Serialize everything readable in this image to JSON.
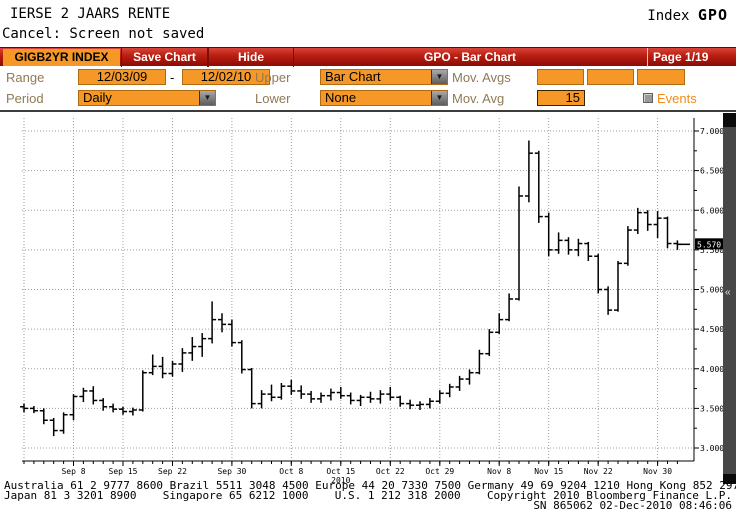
{
  "header": {
    "title": "IERSE 2 JAARS RENTE",
    "subtitle": "Cancel: Screen not saved",
    "right_label": "Index",
    "right_command": "GPO"
  },
  "title_bar": {
    "security": "GIGB2YR INDEX",
    "save_button": "Save Chart",
    "hide_button": "Hide",
    "title": "GPO - Bar Chart",
    "page": "Page 1/19"
  },
  "toolbar": {
    "range_label": "Range",
    "range_start": "12/03/09",
    "range_separator": "-",
    "range_end": "12/02/10",
    "upper_label": "Upper",
    "upper_value": "Bar Chart",
    "mov_avgs_label": "Mov. Avgs",
    "mov_avg_fields": [
      "",
      "",
      ""
    ],
    "period_label": "Period",
    "period_value": "Daily",
    "lower_label": "Lower",
    "lower_value": "None",
    "mov_avg_label": "Mov. Avg",
    "mov_avg_value": "15",
    "events_label": "Events"
  },
  "chart_data": {
    "type": "bar",
    "subtype": "ohlc_daily_bars",
    "title": "GPO - Bar Chart",
    "security": "GIGB2YR INDEX",
    "period": "Daily",
    "ylim": [
      3.0,
      7.0
    ],
    "y_tick_step": 0.5,
    "y_minor_tick_step": 0.25,
    "y_tick_labels": [
      "7.000",
      "6.500",
      "6.000",
      "5.500",
      "5.000",
      "4.500",
      "4.000",
      "3.500",
      "3.000"
    ],
    "grid": "dotted",
    "x_tick_labels": [
      {
        "text": "Sep 8",
        "i": 5
      },
      {
        "text": "Sep 15",
        "i": 10
      },
      {
        "text": "Sep 22",
        "i": 15
      },
      {
        "text": "Sep 30",
        "i": 21
      },
      {
        "text": "Oct 8",
        "i": 27
      },
      {
        "text": "Oct 15",
        "i": 32
      },
      {
        "text": "Oct 22",
        "i": 37
      },
      {
        "text": "Oct 29",
        "i": 42
      },
      {
        "text": "Nov 8",
        "i": 48
      },
      {
        "text": "Nov 15",
        "i": 53
      },
      {
        "text": "Nov 22",
        "i": 58
      },
      {
        "text": "Nov 30",
        "i": 64
      }
    ],
    "year_label": {
      "text": "2010",
      "i": 32
    },
    "grid_line_indices": [
      0,
      5,
      10,
      15,
      21,
      27,
      32,
      37,
      42,
      48,
      53,
      58,
      64
    ],
    "last_price": 5.57,
    "last_price_label": "5.570",
    "bars_format": [
      "date",
      "open",
      "high",
      "low",
      "close"
    ],
    "bars": [
      [
        "09/01",
        3.52,
        3.56,
        3.45,
        3.5
      ],
      [
        "09/02",
        3.5,
        3.53,
        3.44,
        3.47
      ],
      [
        "09/03",
        3.47,
        3.5,
        3.3,
        3.35
      ],
      [
        "09/06",
        3.35,
        3.38,
        3.15,
        3.22
      ],
      [
        "09/07",
        3.22,
        3.45,
        3.18,
        3.42
      ],
      [
        "09/08",
        3.42,
        3.68,
        3.35,
        3.65
      ],
      [
        "09/09",
        3.65,
        3.76,
        3.58,
        3.72
      ],
      [
        "09/10",
        3.72,
        3.78,
        3.55,
        3.6
      ],
      [
        "09/13",
        3.6,
        3.63,
        3.47,
        3.52
      ],
      [
        "09/14",
        3.52,
        3.56,
        3.45,
        3.49
      ],
      [
        "09/15",
        3.49,
        3.52,
        3.42,
        3.46
      ],
      [
        "09/16",
        3.46,
        3.51,
        3.41,
        3.48
      ],
      [
        "09/17",
        3.48,
        3.98,
        3.46,
        3.95
      ],
      [
        "09/20",
        3.95,
        4.18,
        3.92,
        4.03
      ],
      [
        "09/21",
        4.03,
        4.15,
        3.88,
        3.94
      ],
      [
        "09/22",
        3.94,
        4.1,
        3.9,
        4.06
      ],
      [
        "09/23",
        4.06,
        4.26,
        3.96,
        4.2
      ],
      [
        "09/24",
        4.2,
        4.4,
        4.1,
        4.28
      ],
      [
        "09/27",
        4.28,
        4.45,
        4.15,
        4.38
      ],
      [
        "09/28",
        4.38,
        4.85,
        4.32,
        4.62
      ],
      [
        "09/29",
        4.62,
        4.7,
        4.46,
        4.56
      ],
      [
        "09/30",
        4.56,
        4.62,
        4.28,
        4.33
      ],
      [
        "10/01",
        4.33,
        4.36,
        3.94,
        3.99
      ],
      [
        "10/04",
        3.99,
        4.01,
        3.5,
        3.56
      ],
      [
        "10/05",
        3.56,
        3.73,
        3.5,
        3.68
      ],
      [
        "10/06",
        3.68,
        3.8,
        3.59,
        3.64
      ],
      [
        "10/07",
        3.64,
        3.82,
        3.61,
        3.78
      ],
      [
        "10/08",
        3.78,
        3.86,
        3.67,
        3.72
      ],
      [
        "10/11",
        3.72,
        3.79,
        3.62,
        3.68
      ],
      [
        "10/12",
        3.68,
        3.72,
        3.57,
        3.62
      ],
      [
        "10/13",
        3.62,
        3.7,
        3.57,
        3.66
      ],
      [
        "10/14",
        3.66,
        3.75,
        3.6,
        3.7
      ],
      [
        "10/15",
        3.7,
        3.77,
        3.62,
        3.66
      ],
      [
        "10/18",
        3.66,
        3.7,
        3.55,
        3.6
      ],
      [
        "10/19",
        3.6,
        3.67,
        3.53,
        3.64
      ],
      [
        "10/20",
        3.64,
        3.71,
        3.57,
        3.62
      ],
      [
        "10/21",
        3.62,
        3.73,
        3.56,
        3.68
      ],
      [
        "10/22",
        3.68,
        3.77,
        3.6,
        3.64
      ],
      [
        "10/25",
        3.64,
        3.66,
        3.52,
        3.56
      ],
      [
        "10/26",
        3.56,
        3.61,
        3.49,
        3.54
      ],
      [
        "10/27",
        3.54,
        3.59,
        3.48,
        3.55
      ],
      [
        "10/28",
        3.55,
        3.63,
        3.5,
        3.59
      ],
      [
        "10/29",
        3.59,
        3.73,
        3.56,
        3.69
      ],
      [
        "11/01",
        3.69,
        3.81,
        3.64,
        3.77
      ],
      [
        "11/02",
        3.77,
        3.91,
        3.72,
        3.87
      ],
      [
        "11/03",
        3.87,
        3.99,
        3.8,
        3.95
      ],
      [
        "11/04",
        3.95,
        4.24,
        3.93,
        4.19
      ],
      [
        "11/05",
        4.19,
        4.5,
        4.16,
        4.46
      ],
      [
        "11/08",
        4.46,
        4.7,
        4.44,
        4.62
      ],
      [
        "11/09",
        4.62,
        4.95,
        4.6,
        4.88
      ],
      [
        "11/10",
        4.88,
        6.3,
        4.86,
        6.18
      ],
      [
        "11/11",
        6.18,
        6.88,
        6.1,
        6.72
      ],
      [
        "11/12",
        6.72,
        6.75,
        5.84,
        5.92
      ],
      [
        "11/15",
        5.92,
        5.97,
        5.42,
        5.5
      ],
      [
        "11/16",
        5.5,
        5.72,
        5.45,
        5.62
      ],
      [
        "11/17",
        5.62,
        5.66,
        5.44,
        5.5
      ],
      [
        "11/18",
        5.5,
        5.64,
        5.42,
        5.58
      ],
      [
        "11/19",
        5.58,
        5.6,
        5.36,
        5.42
      ],
      [
        "11/22",
        5.42,
        5.45,
        4.95,
        5.0
      ],
      [
        "11/23",
        5.0,
        5.04,
        4.68,
        4.74
      ],
      [
        "11/24",
        4.74,
        5.36,
        4.72,
        5.33
      ],
      [
        "11/25",
        5.33,
        5.8,
        5.3,
        5.75
      ],
      [
        "11/26",
        5.75,
        6.03,
        5.7,
        5.97
      ],
      [
        "11/29",
        5.97,
        6.0,
        5.74,
        5.82
      ],
      [
        "11/30",
        5.82,
        5.99,
        5.65,
        5.9
      ],
      [
        "12/01",
        5.9,
        5.92,
        5.52,
        5.58
      ],
      [
        "12/02",
        5.58,
        5.62,
        5.5,
        5.57
      ]
    ]
  },
  "footer": {
    "line1": "Australia 61 2 9777 8600 Brazil 5511 3048 4500 Europe 44 20 7330 7500 Germany 49 69 9204 1210 Hong Kong 852 2977 6000",
    "line2_segments": [
      "Japan 81 3 3201 8900",
      "Singapore 65 6212 1000",
      "U.S. 1 212 318 2000",
      "Copyright 2010 Bloomberg Finance L.P."
    ],
    "line3": "SN 865062 02-Dec-2010 08:46:06"
  },
  "colors": {
    "accent_orange": "#f59827",
    "titlebar_red": "#b01a10",
    "events_orange": "#ef8d1f",
    "label_brown": "#8f7a55",
    "bar_color": "#000000",
    "grid_gray": "#9d9d9d"
  }
}
